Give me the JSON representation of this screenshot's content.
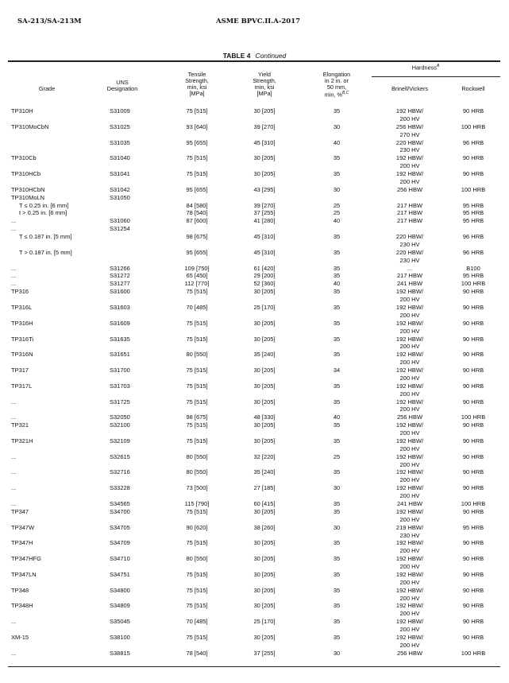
{
  "page_header": {
    "left": "SA-213/SA-213M",
    "right": "ASME BPVC.II.A-2017"
  },
  "table": {
    "label": "TABLE 4",
    "continued": "Continued",
    "headers": {
      "grade": "Grade",
      "uns": [
        "UNS",
        "Designation"
      ],
      "tensile": [
        "Tensile",
        "Strength,",
        "min, ksi",
        "[MPa]"
      ],
      "yield": [
        "Yield",
        "Strength,",
        "min, ksi",
        "[MPa]"
      ],
      "elongation": [
        "Elongation",
        "in 2 in. or",
        "50 mm,",
        "min, %"
      ],
      "elongation_note": "B,C",
      "hardness": "Hardness",
      "hardness_note": "A",
      "brinell": "Brinell/Vickers",
      "rockwell": "Rockwell"
    },
    "rows": [
      [
        "TP310H",
        "S31009",
        "75 [515]",
        "30 [205]",
        "35",
        "192 HBW/",
        "200 HV",
        "90 HRB"
      ],
      [
        "TP310MoCbN",
        "S31025",
        "93 [640]",
        "39 [270]",
        "30",
        "256 HBW/",
        "270 HV",
        "100 HRB"
      ],
      [
        "",
        "S31035",
        "95 [655]",
        "45 [310]",
        "40",
        "220 HBW/",
        "230 HV",
        "96 HRB"
      ],
      [
        "TP310Cb",
        "S31040",
        "75 [515]",
        "30 [205]",
        "35",
        "192 HBW/",
        "200 HV",
        "90 HRB"
      ],
      [
        "TP310HCb",
        "S31041",
        "75 [515]",
        "30 [205]",
        "35",
        "192 HBW/",
        "200 HV",
        "90 HRB"
      ],
      [
        "TP310HCbN",
        "S31042",
        "95 [655]",
        "43 [295]",
        "30",
        "256 HBW",
        "",
        "100 HRB"
      ],
      [
        "TP310MoLN",
        "S31050",
        "",
        "",
        "",
        "",
        "",
        ""
      ],
      [
        "T ≤ 0.25 in. [6 mm]",
        "",
        "84 [580]",
        "39 [270]",
        "25",
        "217 HBW",
        "",
        "95 HRB"
      ],
      [
        "t > 0.25 in. [6 mm]",
        "",
        "78 [540]",
        "37 [255]",
        "25",
        "217 HBW",
        "",
        "95 HRB"
      ],
      [
        "...",
        "S31060",
        "87 [600]",
        "41 [280]",
        "40",
        "217 HBW",
        "",
        "95 HRB"
      ],
      [
        "...",
        "S31254",
        "",
        "",
        "",
        "",
        "",
        ""
      ],
      [
        "T ≤ 0.187 in. [5 mm]",
        "",
        "98 [675]",
        "45 [310]",
        "35",
        "220 HBW/",
        "230 HV",
        "96 HRB"
      ],
      [
        "T > 0.187 in. [5 mm]",
        "",
        "95 [655]",
        "45 [310]",
        "35",
        "220 HBW/",
        "230 HV",
        "96 HRB"
      ],
      [
        "...",
        "S31266",
        "109 [750]",
        "61 [420]",
        "35",
        "...",
        "",
        "B100"
      ],
      [
        "...",
        "S31272",
        "65 [450]",
        "29 [200]",
        "35",
        "217 HBW",
        "",
        "95 HRB"
      ],
      [
        "...",
        "S31277",
        "112 [770]",
        "52 [360]",
        "40",
        "241 HBW",
        "",
        "100 HRB"
      ],
      [
        "TP316",
        "S31600",
        "75 [515]",
        "30 [205]",
        "35",
        "192 HBW/",
        "200 HV",
        "90 HRB"
      ],
      [
        "TP316L",
        "S31603",
        "70 [485]",
        "25 [170]",
        "35",
        "192 HBW/",
        "200 HV",
        "90 HRB"
      ],
      [
        "TP316H",
        "S31609",
        "75 [515]",
        "30 [205]",
        "35",
        "192 HBW/",
        "200 HV",
        "90 HRB"
      ],
      [
        "TP316Ti",
        "S31635",
        "75 [515]",
        "30 [205]",
        "35",
        "192 HBW/",
        "200 HV",
        "90 HRB"
      ],
      [
        "TP316N",
        "S31651",
        "80 [550]",
        "35 [240]",
        "35",
        "192 HBW/",
        "200 HV",
        "90 HRB"
      ],
      [
        "TP317",
        "S31700",
        "75 [515]",
        "30 [205]",
        "34",
        "192 HBW/",
        "200 HV",
        "90 HRB"
      ],
      [
        "TP317L",
        "S31703",
        "75 [515]",
        "30 [205]",
        "35",
        "192 HBW/",
        "200 HV",
        "90 HRB"
      ],
      [
        "...",
        "S31725",
        "75 [515]",
        "30 [205]",
        "35",
        "192 HBW/",
        "200 HV",
        "90 HRB"
      ],
      [
        "...",
        "S32050",
        "98 [675]",
        "48 [330]",
        "40",
        "256 HBW",
        "",
        "100 HRB"
      ],
      [
        "TP321",
        "S32100",
        "75 [515]",
        "30 [205]",
        "35",
        "192 HBW/",
        "200 HV",
        "90 HRB"
      ],
      [
        "TP321H",
        "S32109",
        "75 [515]",
        "30 [205]",
        "35",
        "192 HBW/",
        "200 HV",
        "90 HRB"
      ],
      [
        "...",
        "S32615",
        "80 [550]",
        "32 [220]",
        "25",
        "192 HBW/",
        "200 HV",
        "90 HRB"
      ],
      [
        "...",
        "S32716",
        "80 [550]",
        "35 [240]",
        "35",
        "192 HBW/",
        "200 HV",
        "90 HRB"
      ],
      [
        "...",
        "S33228",
        "73 [500]",
        "27 [185]",
        "30",
        "192 HBW/",
        "200 HV",
        "90 HRB"
      ],
      [
        "...",
        "S34565",
        "115 [790]",
        "60 [415]",
        "35",
        "241 HBW",
        "",
        "100 HRB"
      ],
      [
        "TP347",
        "S34700",
        "75 [515]",
        "30 [205]",
        "35",
        "192 HBW/",
        "200 HV",
        "90 HRB"
      ],
      [
        "TP347W",
        "S34705",
        "90 [620]",
        "38 [260]",
        "30",
        "219 HBW/",
        "230 HV",
        "95 HRB"
      ],
      [
        "TP347H",
        "S34709",
        "75 [515]",
        "30 [205]",
        "35",
        "192 HBW/",
        "200 HV",
        "90 HRB"
      ],
      [
        "TP347HFG",
        "S34710",
        "80 [550]",
        "30 [205]",
        "35",
        "192 HBW/",
        "200 HV",
        "90 HRB"
      ],
      [
        "TP347LN",
        "S34751",
        "75 [515]",
        "30 [205]",
        "35",
        "192 HBW/",
        "200 HV",
        "90 HRB"
      ],
      [
        "TP348",
        "S34800",
        "75 [515]",
        "30 [205]",
        "35",
        "192 HBW/",
        "200 HV",
        "90 HRB"
      ],
      [
        "TP348H",
        "S34809",
        "75 [515]",
        "30 [205]",
        "35",
        "192 HBW/",
        "200 HV",
        "90 HRB"
      ],
      [
        "...",
        "S35045",
        "70 [485]",
        "25 [170]",
        "35",
        "192 HBW/",
        "200 HV",
        "90 HRB"
      ],
      [
        "XM-15",
        "S38100",
        "75 [515]",
        "30 [205]",
        "35",
        "192 HBW/",
        "200 HV",
        "90 HRB"
      ],
      [
        "...",
        "S38815",
        "78 [540]",
        "37 [255]",
        "30",
        "256 HBW",
        "",
        "100 HRB"
      ]
    ]
  }
}
